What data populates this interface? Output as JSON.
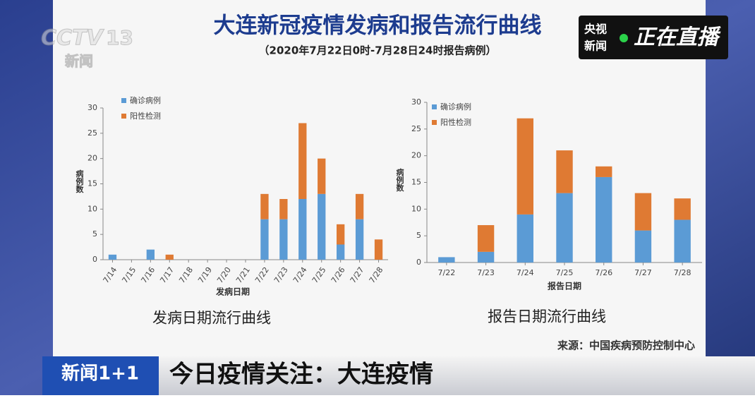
{
  "header": {
    "title": "大连新冠疫情发病和报告流行曲线",
    "subtitle": "（2020年7月22日0时-7月28日24时报告病例）"
  },
  "channel_logo": {
    "name": "CCTV",
    "number": "13",
    "sub": "新闻"
  },
  "live_badge": {
    "brand_top": "央视",
    "brand_bottom": "新闻",
    "status": "正在直播"
  },
  "source": "来源：中国疾病预防控制中心",
  "banner": {
    "show": "新闻1+1",
    "headline": "今日疫情关注：大连疫情"
  },
  "chart_data": [
    {
      "type": "bar",
      "stacked": true,
      "caption": "发病日期流行曲线",
      "xlabel": "发病日期",
      "ylabel": "病例数",
      "categories": [
        "7/14",
        "7/15",
        "7/16",
        "7/17",
        "7/18",
        "7/19",
        "7/20",
        "7/21",
        "7/22",
        "7/23",
        "7/24",
        "7/25",
        "7/26",
        "7/27",
        "7/28"
      ],
      "series": [
        {
          "name": "确诊病例",
          "color": "#5b9bd5",
          "values": [
            1,
            0,
            2,
            0,
            0,
            0,
            0,
            0,
            8,
            8,
            12,
            13,
            3,
            8,
            0
          ]
        },
        {
          "name": "阳性检测",
          "color": "#df7a33",
          "values": [
            0,
            0,
            0,
            1,
            0,
            0,
            0,
            0,
            5,
            4,
            15,
            7,
            4,
            5,
            4
          ]
        }
      ],
      "ylim": [
        0,
        30
      ],
      "yticks": [
        0,
        5,
        10,
        15,
        20,
        25,
        30
      ],
      "grid": false,
      "legend": "upper left"
    },
    {
      "type": "bar",
      "stacked": true,
      "caption": "报告日期流行曲线",
      "xlabel": "报告日期",
      "ylabel": "病例数",
      "categories": [
        "7/22",
        "7/23",
        "7/24",
        "7/25",
        "7/26",
        "7/27",
        "7/28"
      ],
      "series": [
        {
          "name": "确诊病例",
          "color": "#5b9bd5",
          "values": [
            1,
            2,
            9,
            13,
            16,
            6,
            8
          ]
        },
        {
          "name": "阳性检测",
          "color": "#df7a33",
          "values": [
            0,
            5,
            18,
            8,
            2,
            7,
            4
          ]
        }
      ],
      "ylim": [
        0,
        30
      ],
      "yticks": [
        0,
        5,
        10,
        15,
        20,
        25,
        30
      ],
      "grid": false,
      "legend": "upper left"
    }
  ]
}
